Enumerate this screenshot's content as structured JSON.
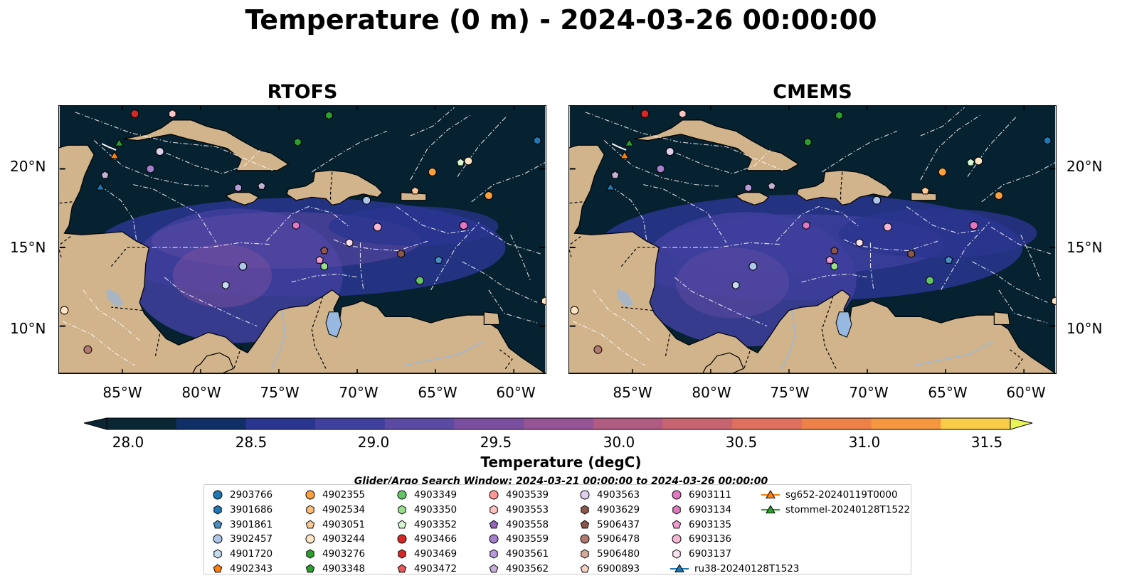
{
  "title": "Temperature (0 m) - 2024-03-26 00:00:00",
  "panels": [
    {
      "id": "rtofs",
      "title": "RTOFS"
    },
    {
      "id": "cmems",
      "title": "CMEMS"
    }
  ],
  "map": {
    "lon_range": [
      -89,
      -58
    ],
    "lat_range": [
      7,
      24
    ],
    "lat_ticks": [
      "20°N",
      "15°N",
      "10°N"
    ],
    "lon_ticks": [
      "85°W",
      "80°W",
      "75°W",
      "70°W",
      "65°W",
      "60°W"
    ],
    "colors": {
      "land": "#d2b48c",
      "water_cold": "#06212f",
      "lake": "#97b8e0",
      "eez_lines": "#ffffff"
    }
  },
  "colorbar": {
    "label": "Temperature (degC)",
    "range": [
      28.0,
      31.5
    ],
    "ticks": [
      "28.0",
      "28.5",
      "29.0",
      "29.5",
      "30.0",
      "30.5",
      "31.0",
      "31.5"
    ],
    "colors": [
      "#0a2635",
      "#0f2f66",
      "#2a3590",
      "#40409e",
      "#5b4aa3",
      "#7a4f9f",
      "#955495",
      "#b05b82",
      "#c8646f",
      "#df705d",
      "#ee8148",
      "#f69740",
      "#f9b13d",
      "#f7cc46",
      "#e8f458"
    ]
  },
  "search_window": "Glider/Argo Search Window: 2024-03-21 00:00:00 to 2024-03-26 00:00:00",
  "legend": [
    {
      "label": "2903766",
      "marker": "circle",
      "color": "#1f77b4"
    },
    {
      "label": "3901686",
      "marker": "hexagon",
      "color": "#1f77b4"
    },
    {
      "label": "3901861",
      "marker": "pentagon",
      "color": "#4a8fc4"
    },
    {
      "label": "3902457",
      "marker": "circle",
      "color": "#aec7e8"
    },
    {
      "label": "4901720",
      "marker": "hexagon",
      "color": "#c6dbef"
    },
    {
      "label": "4902343",
      "marker": "pentagon",
      "color": "#ff7f0e"
    },
    {
      "label": "4902355",
      "marker": "circle",
      "color": "#ff9f3a"
    },
    {
      "label": "4902534",
      "marker": "hexagon",
      "color": "#ffbb78"
    },
    {
      "label": "4903051",
      "marker": "pentagon",
      "color": "#ffc896"
    },
    {
      "label": "4903244",
      "marker": "circle",
      "color": "#ffe4c4"
    },
    {
      "label": "4903276",
      "marker": "hexagon",
      "color": "#2ca02c"
    },
    {
      "label": "4903348",
      "marker": "pentagon",
      "color": "#2ca02c"
    },
    {
      "label": "4903349",
      "marker": "circle",
      "color": "#66c466"
    },
    {
      "label": "4903350",
      "marker": "hexagon",
      "color": "#98df8a"
    },
    {
      "label": "4903352",
      "marker": "pentagon",
      "color": "#d6f5cf"
    },
    {
      "label": "4903466",
      "marker": "circle",
      "color": "#d62728"
    },
    {
      "label": "4903469",
      "marker": "hexagon",
      "color": "#d62728"
    },
    {
      "label": "4903472",
      "marker": "pentagon",
      "color": "#e8575a"
    },
    {
      "label": "4903539",
      "marker": "circle",
      "color": "#ff9896"
    },
    {
      "label": "4903553",
      "marker": "hexagon",
      "color": "#ffc4c2"
    },
    {
      "label": "4903558",
      "marker": "pentagon",
      "color": "#9467bd"
    },
    {
      "label": "4903559",
      "marker": "circle",
      "color": "#a47fcc"
    },
    {
      "label": "4903561",
      "marker": "hexagon",
      "color": "#b89ad8"
    },
    {
      "label": "4903562",
      "marker": "pentagon",
      "color": "#c5b0d5"
    },
    {
      "label": "4903563",
      "marker": "circle",
      "color": "#e0d0ee"
    },
    {
      "label": "4903629",
      "marker": "hexagon",
      "color": "#8c564b"
    },
    {
      "label": "5906437",
      "marker": "pentagon",
      "color": "#8c564b"
    },
    {
      "label": "5906478",
      "marker": "circle",
      "color": "#b07a6e"
    },
    {
      "label": "5906480",
      "marker": "hexagon",
      "color": "#d6a89a"
    },
    {
      "label": "6900893",
      "marker": "pentagon",
      "color": "#f6d0c0"
    },
    {
      "label": "6903111",
      "marker": "circle",
      "color": "#e377c2"
    },
    {
      "label": "6903134",
      "marker": "hexagon",
      "color": "#e377c2"
    },
    {
      "label": "6903135",
      "marker": "pentagon",
      "color": "#f29ad3"
    },
    {
      "label": "6903136",
      "marker": "circle",
      "color": "#f7b6d2"
    },
    {
      "label": "6903137",
      "marker": "hexagon",
      "color": "#fde0ef"
    },
    {
      "label": "ru38-20240128T1523",
      "marker": "triangle-line",
      "color": "#1f77b4"
    },
    {
      "label": "sg652-20240119T0000",
      "marker": "triangle-line",
      "color": "#ff7f0e"
    },
    {
      "label": "stommel-20240128T1522",
      "marker": "triangle-line",
      "color": "#2ca02c"
    }
  ],
  "stations": [
    {
      "lon": -84.2,
      "lat": 23.5,
      "marker": "circle",
      "color": "#d62728"
    },
    {
      "lon": -81.8,
      "lat": 23.5,
      "marker": "hexagon",
      "color": "#ffc4c2"
    },
    {
      "lon": -71.8,
      "lat": 23.4,
      "marker": "hexagon",
      "color": "#2ca02c"
    },
    {
      "lon": -73.8,
      "lat": 21.7,
      "marker": "hexagon",
      "color": "#2ca02c"
    },
    {
      "lon": -85.2,
      "lat": 21.6,
      "marker": "triangle",
      "color": "#2ca02c"
    },
    {
      "lon": -85.5,
      "lat": 20.8,
      "marker": "triangle",
      "color": "#ff7f0e"
    },
    {
      "lon": -86.4,
      "lat": 18.8,
      "marker": "triangle",
      "color": "#1f77b4"
    },
    {
      "lon": -82.6,
      "lat": 21.1,
      "marker": "circle",
      "color": "#e0d0ee"
    },
    {
      "lon": -86.1,
      "lat": 19.6,
      "marker": "pentagon",
      "color": "#c5b0d5"
    },
    {
      "lon": -83.2,
      "lat": 20.0,
      "marker": "circle",
      "color": "#a47fcc"
    },
    {
      "lon": -77.6,
      "lat": 18.8,
      "marker": "hexagon",
      "color": "#b89ad8"
    },
    {
      "lon": -76.1,
      "lat": 18.9,
      "marker": "pentagon",
      "color": "#c5b0d5"
    },
    {
      "lon": -65.2,
      "lat": 19.8,
      "marker": "circle",
      "color": "#ff9f3a"
    },
    {
      "lon": -66.3,
      "lat": 18.6,
      "marker": "pentagon",
      "color": "#ffc896"
    },
    {
      "lon": -63.4,
      "lat": 20.4,
      "marker": "pentagon",
      "color": "#d6f5cf"
    },
    {
      "lon": -62.9,
      "lat": 20.5,
      "marker": "circle",
      "color": "#ffe4c4"
    },
    {
      "lon": -61.6,
      "lat": 18.3,
      "marker": "circle",
      "color": "#ff9f3a"
    },
    {
      "lon": -58.5,
      "lat": 21.8,
      "marker": "hexagon",
      "color": "#1f77b4"
    },
    {
      "lon": -69.4,
      "lat": 18.0,
      "marker": "circle",
      "color": "#aec7e8"
    },
    {
      "lon": -73.9,
      "lat": 16.4,
      "marker": "hexagon",
      "color": "#e377c2"
    },
    {
      "lon": -68.7,
      "lat": 16.3,
      "marker": "circle",
      "color": "#f7b6d2"
    },
    {
      "lon": -63.2,
      "lat": 16.4,
      "marker": "circle",
      "color": "#e377c2"
    },
    {
      "lon": -70.5,
      "lat": 15.3,
      "marker": "hexagon",
      "color": "#fde0ef"
    },
    {
      "lon": -72.1,
      "lat": 14.8,
      "marker": "pentagon",
      "color": "#8c564b"
    },
    {
      "lon": -67.2,
      "lat": 14.6,
      "marker": "hexagon",
      "color": "#8c564b"
    },
    {
      "lon": -72.4,
      "lat": 14.2,
      "marker": "pentagon",
      "color": "#f29ad3"
    },
    {
      "lon": -72.1,
      "lat": 13.8,
      "marker": "hexagon",
      "color": "#98df8a"
    },
    {
      "lon": -64.8,
      "lat": 14.2,
      "marker": "pentagon",
      "color": "#4a8fc4"
    },
    {
      "lon": -77.3,
      "lat": 13.8,
      "marker": "circle",
      "color": "#aec7e8"
    },
    {
      "lon": -78.4,
      "lat": 12.6,
      "marker": "hexagon",
      "color": "#c6dbef"
    },
    {
      "lon": -66.0,
      "lat": 12.9,
      "marker": "circle",
      "color": "#66c466"
    },
    {
      "lon": -88.7,
      "lat": 11.0,
      "marker": "circle",
      "color": "#ffe4c4"
    },
    {
      "lon": -87.2,
      "lat": 8.5,
      "marker": "circle",
      "color": "#b07a6e"
    },
    {
      "lon": -58.0,
      "lat": 11.6,
      "marker": "hexagon",
      "color": "#ffe4c4"
    }
  ]
}
